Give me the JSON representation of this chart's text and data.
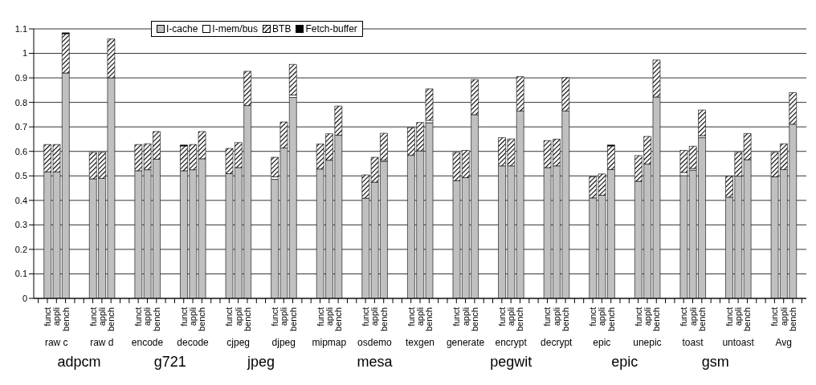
{
  "chart_data": {
    "type": "bar",
    "stacked": true,
    "categories": [
      null,
      "funct",
      "appli",
      "bench",
      null,
      null,
      "funct",
      "appli",
      "bench",
      null,
      null,
      "funct",
      "appli",
      "bench",
      null,
      null,
      "funct",
      "appli",
      "bench",
      null,
      null,
      "funct",
      "appli",
      "bench",
      null,
      null,
      "funct",
      "appli",
      "bench",
      null,
      null,
      "funct",
      "appli",
      "bench",
      null,
      null,
      "funct",
      "appli",
      "bench",
      null,
      null,
      "funct",
      "appli",
      "bench",
      null,
      null,
      "funct",
      "appli",
      "bench",
      null,
      null,
      "funct",
      "appli",
      "bench",
      null,
      null,
      "funct",
      "appli",
      "bench",
      null,
      null,
      "funct",
      "appli",
      "bench",
      null,
      null,
      "funct",
      "appli",
      "bench",
      null,
      null,
      "funct",
      "appli",
      "bench",
      null,
      null,
      "funct",
      "appli",
      "bench",
      null,
      null,
      "funct",
      "appli",
      "bench",
      null
    ],
    "series": [
      {
        "name": "I-cache",
        "color": "#c0c0c0",
        "values": [
          null,
          0.516,
          0.516,
          0.92,
          null,
          null,
          0.488,
          0.49,
          0.9,
          null,
          null,
          0.521,
          0.525,
          0.568,
          null,
          null,
          0.521,
          0.525,
          0.57,
          null,
          null,
          0.509,
          0.534,
          0.787,
          null,
          null,
          0.486,
          0.614,
          0.82,
          null,
          null,
          0.528,
          0.564,
          0.666,
          null,
          null,
          0.409,
          0.474,
          0.559,
          null,
          null,
          0.584,
          0.602,
          0.717,
          null,
          null,
          0.481,
          0.493,
          0.75,
          null,
          null,
          0.541,
          0.541,
          0.765,
          null,
          null,
          0.534,
          0.541,
          0.765,
          null,
          null,
          0.41,
          0.421,
          0.526,
          null,
          null,
          0.478,
          0.548,
          0.822,
          null,
          null,
          0.501,
          0.523,
          0.656,
          null,
          null,
          0.413,
          0.499,
          0.566,
          null,
          null,
          0.496,
          0.526,
          0.711,
          null
        ]
      },
      {
        "name": "I-mem/bus",
        "color": "#ffffff",
        "values": [
          null,
          0,
          0,
          0,
          null,
          null,
          0,
          0,
          0,
          null,
          null,
          0,
          0,
          0,
          null,
          null,
          0,
          0,
          0,
          null,
          null,
          0,
          0,
          0,
          null,
          null,
          0.01,
          0,
          0.01,
          null,
          null,
          0,
          0,
          0,
          null,
          null,
          0,
          0,
          0.005,
          null,
          null,
          0,
          0,
          0.01,
          null,
          null,
          0,
          0,
          0,
          null,
          null,
          0,
          0,
          0,
          null,
          null,
          0,
          0,
          0,
          null,
          null,
          0,
          0,
          0,
          null,
          null,
          0,
          0,
          0,
          null,
          null,
          0.013,
          0.007,
          0.008,
          null,
          null,
          0,
          0,
          0,
          null,
          null,
          0,
          0,
          0,
          null
        ]
      },
      {
        "name": "BTB",
        "color": "#000000",
        "values": [
          null,
          0.112,
          0.112,
          0.16,
          null,
          null,
          0.108,
          0.106,
          0.159,
          null,
          null,
          0.107,
          0.106,
          0.113,
          null,
          null,
          0.101,
          0.103,
          0.111,
          null,
          null,
          0.103,
          0.102,
          0.14,
          null,
          null,
          0.08,
          0.106,
          0.125,
          null,
          null,
          0.102,
          0.108,
          0.119,
          null,
          null,
          0.095,
          0.102,
          0.11,
          null,
          null,
          0.113,
          0.116,
          0.128,
          null,
          null,
          0.115,
          0.111,
          0.143,
          null,
          null,
          0.115,
          0.11,
          0.14,
          null,
          null,
          0.11,
          0.109,
          0.136,
          null,
          null,
          0.086,
          0.087,
          0.096,
          null,
          null,
          0.105,
          0.113,
          0.151,
          null,
          null,
          0.09,
          0.091,
          0.105,
          null,
          null,
          0.086,
          0.097,
          0.107,
          null,
          null,
          0.1,
          0.105,
          0.129,
          null
        ]
      },
      {
        "name": "Fetch-buffer",
        "color": "#000000",
        "values": [
          null,
          0,
          0,
          0.004,
          null,
          null,
          0,
          0,
          0,
          null,
          null,
          0,
          0,
          0,
          null,
          null,
          0.004,
          0,
          0,
          null,
          null,
          0,
          0,
          0,
          null,
          null,
          0,
          0,
          0,
          null,
          null,
          0,
          0,
          0,
          null,
          null,
          0,
          0,
          0,
          null,
          null,
          0,
          0,
          0,
          null,
          null,
          0,
          0,
          0,
          null,
          null,
          0,
          0,
          0,
          null,
          null,
          0,
          0,
          0,
          null,
          null,
          0,
          0,
          0.004,
          null,
          null,
          0,
          0,
          0,
          null,
          null,
          0,
          0,
          0,
          null,
          null,
          0,
          0,
          0,
          null,
          null,
          0,
          0,
          0,
          null
        ]
      }
    ],
    "ylim": [
      0,
      1.1
    ],
    "yticks": [
      0,
      0.1,
      0.2,
      0.3,
      0.4,
      0.5,
      0.6,
      0.7,
      0.8,
      0.9,
      1,
      1.1
    ],
    "grid": "y",
    "legend": "top",
    "annotations": [
      "raw c",
      "raw d",
      "encode",
      "decode",
      "cjpeg",
      "djpeg",
      "mipmap",
      "osdemo",
      "texgen",
      "generate",
      "encrypt",
      "decrypt",
      "epic",
      "unepic",
      "toast",
      "untoast",
      "Avg",
      "adpcm",
      "g721",
      "jpeg",
      "mesa",
      "pegwit",
      "epic",
      "gsm"
    ]
  }
}
